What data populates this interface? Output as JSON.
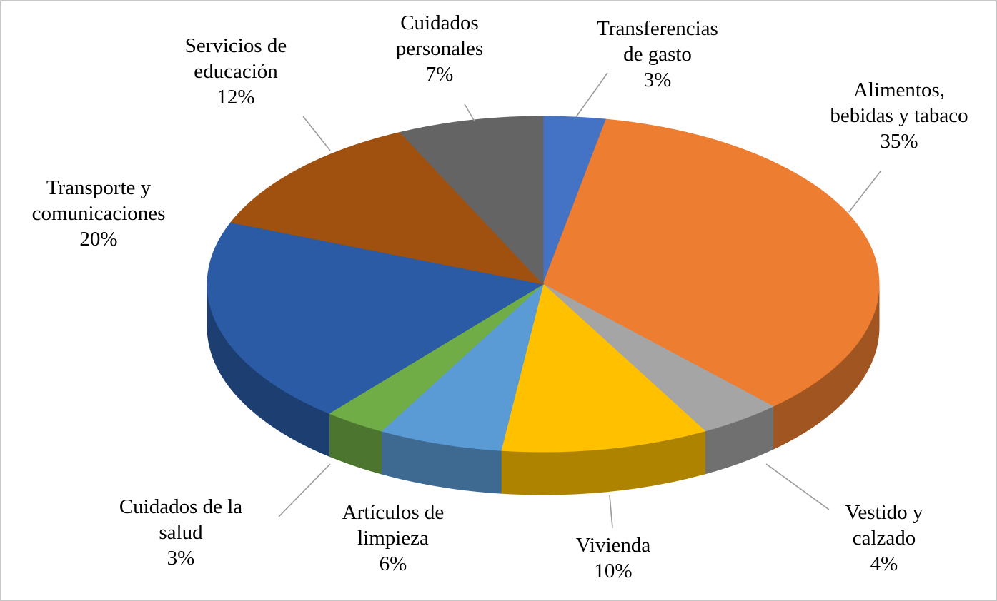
{
  "page": {
    "background": "#ffffff",
    "border_color": "#c6c6c6"
  },
  "chart_data": {
    "type": "pie",
    "style": "3d",
    "title": "",
    "unit": "%",
    "direction": "clockwise",
    "start_angle_deg": 0,
    "legend_position": "none",
    "grid": false,
    "total": 100,
    "text_color": "#000000",
    "leader_line_color": "#9a9a9a",
    "slices": [
      {
        "name": "Transferencias de gasto",
        "value": 3,
        "pct_label": "3%",
        "color": "#4472C4",
        "text_lines": [
          "Transferencias",
          "de gasto",
          "3%"
        ]
      },
      {
        "name": "Alimentos, bebidas y tabaco",
        "value": 35,
        "pct_label": "35%",
        "color": "#ED7D31",
        "text_lines": [
          "Alimentos,",
          "bebidas y tabaco",
          "35%"
        ]
      },
      {
        "name": "Vestido y calzado",
        "value": 4,
        "pct_label": "4%",
        "color": "#A5A5A5",
        "text_lines": [
          "Vestido y",
          "calzado",
          "4%"
        ]
      },
      {
        "name": "Vivienda",
        "value": 10,
        "pct_label": "10%",
        "color": "#FFC000",
        "text_lines": [
          "Vivienda",
          "10%"
        ]
      },
      {
        "name": "Artículos de limpieza",
        "value": 6,
        "pct_label": "6%",
        "color": "#5B9BD5",
        "text_lines": [
          "Artículos de",
          "limpieza",
          "6%"
        ]
      },
      {
        "name": "Cuidados de la salud",
        "value": 3,
        "pct_label": "3%",
        "color": "#70AD47",
        "text_lines": [
          "Cuidados de la",
          "salud",
          "3%"
        ]
      },
      {
        "name": "Transporte y comunicaciones",
        "value": 20,
        "pct_label": "20%",
        "color": "#2B5BA5",
        "text_lines": [
          "Transporte y",
          "comunicaciones",
          "20%"
        ]
      },
      {
        "name": "Servicios de educación",
        "value": 12,
        "pct_label": "12%",
        "color": "#A0500F",
        "text_lines": [
          "Servicios de",
          "educación",
          "12%"
        ]
      },
      {
        "name": "Cuidados personales",
        "value": 7,
        "pct_label": "7%",
        "color": "#646464",
        "text_lines": [
          "Cuidados",
          "personales",
          "7%"
        ]
      }
    ]
  }
}
